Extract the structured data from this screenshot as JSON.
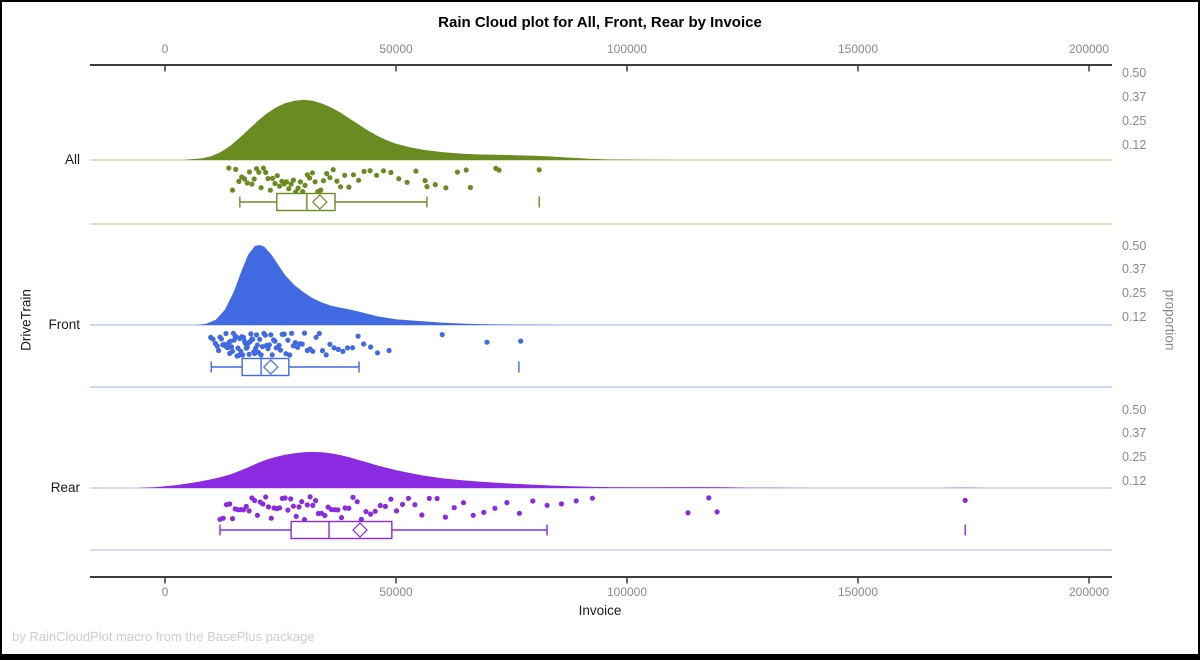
{
  "title": "Rain Cloud plot for All, Front, Rear by Invoice",
  "footnote": "by RainCloudPlot macro from the BasePlus package",
  "x_axis": {
    "label": "Invoice",
    "ticks": [
      "0",
      "50000",
      "100000",
      "150000",
      "200000"
    ],
    "tick_values": [
      0,
      50000,
      100000,
      150000,
      200000
    ]
  },
  "y_axis": {
    "label": "DriveTrain"
  },
  "right_axis": {
    "label": "proportion",
    "ticks": [
      "0.50",
      "0.37",
      "0.25",
      "0.12"
    ],
    "tick_values": [
      0.5,
      0.37,
      0.25,
      0.12
    ]
  },
  "chart_data": {
    "type": "raincloud",
    "xlabel": "Invoice",
    "ylabel": "DriveTrain",
    "x_range": [
      -16000,
      205000
    ],
    "proportion_ticks": [
      0.5,
      0.37,
      0.25,
      0.12
    ],
    "groups": [
      {
        "name": "All",
        "color": "#6a8a22",
        "light_color": "#cfd9ab",
        "density": [
          [
            4000,
            0
          ],
          [
            8000,
            0.01
          ],
          [
            10000,
            0.022
          ],
          [
            12000,
            0.045
          ],
          [
            14000,
            0.08
          ],
          [
            16000,
            0.125
          ],
          [
            18000,
            0.175
          ],
          [
            20000,
            0.225
          ],
          [
            22000,
            0.27
          ],
          [
            24000,
            0.305
          ],
          [
            26000,
            0.33
          ],
          [
            28000,
            0.345
          ],
          [
            30000,
            0.35
          ],
          [
            32000,
            0.344
          ],
          [
            34000,
            0.328
          ],
          [
            36000,
            0.305
          ],
          [
            38000,
            0.275
          ],
          [
            40000,
            0.24
          ],
          [
            42000,
            0.205
          ],
          [
            44000,
            0.17
          ],
          [
            46000,
            0.14
          ],
          [
            48000,
            0.115
          ],
          [
            50000,
            0.095
          ],
          [
            53000,
            0.074
          ],
          [
            56000,
            0.059
          ],
          [
            60000,
            0.046
          ],
          [
            64000,
            0.037
          ],
          [
            68000,
            0.032
          ],
          [
            72000,
            0.03
          ],
          [
            76000,
            0.028
          ],
          [
            80000,
            0.025
          ],
          [
            84000,
            0.02
          ],
          [
            88000,
            0.013
          ],
          [
            92000,
            0.007
          ],
          [
            96000,
            0.003
          ],
          [
            102000,
            0.001
          ],
          [
            110000,
            0
          ]
        ],
        "box": {
          "whisker_low": 16200,
          "q1": 24200,
          "median": 30700,
          "mean": 33500,
          "q3": 36800,
          "whisker_high": 56700,
          "outliers": [
            81000
          ]
        },
        "points": [
          13800,
          14600,
          15300,
          16000,
          16600,
          17200,
          17800,
          18300,
          18800,
          19300,
          19800,
          20300,
          20800,
          21300,
          21800,
          22300,
          22800,
          23300,
          23800,
          24300,
          24800,
          25300,
          25800,
          26300,
          26800,
          27300,
          27800,
          28300,
          28800,
          29300,
          29800,
          30300,
          30800,
          31300,
          31900,
          32500,
          33100,
          33700,
          34300,
          35000,
          35700,
          36400,
          37200,
          38000,
          38900,
          39800,
          40800,
          41900,
          43100,
          44400,
          45800,
          47300,
          48900,
          50600,
          52400,
          54300,
          56300,
          56700,
          58500,
          60800,
          63300,
          65200,
          66100,
          71600,
          72300,
          81000
        ]
      },
      {
        "name": "Front",
        "color": "#4169e1",
        "light_color": "#bdcaf2",
        "density": [
          [
            7000,
            0
          ],
          [
            9000,
            0.008
          ],
          [
            11000,
            0.03
          ],
          [
            13000,
            0.09
          ],
          [
            15000,
            0.2
          ],
          [
            16500,
            0.31
          ],
          [
            18000,
            0.41
          ],
          [
            19500,
            0.46
          ],
          [
            20500,
            0.465
          ],
          [
            21500,
            0.455
          ],
          [
            23000,
            0.41
          ],
          [
            24500,
            0.35
          ],
          [
            26000,
            0.29
          ],
          [
            28000,
            0.232
          ],
          [
            30000,
            0.19
          ],
          [
            32000,
            0.155
          ],
          [
            34000,
            0.13
          ],
          [
            36000,
            0.112
          ],
          [
            38000,
            0.1
          ],
          [
            40000,
            0.09
          ],
          [
            42000,
            0.078
          ],
          [
            44000,
            0.064
          ],
          [
            46000,
            0.051
          ],
          [
            48000,
            0.041
          ],
          [
            50000,
            0.034
          ],
          [
            53000,
            0.027
          ],
          [
            56000,
            0.021
          ],
          [
            60000,
            0.014
          ],
          [
            64000,
            0.009
          ],
          [
            68000,
            0.005
          ],
          [
            72000,
            0.003
          ],
          [
            76000,
            0.002
          ],
          [
            81000,
            0.001
          ],
          [
            86000,
            0
          ]
        ],
        "box": {
          "whisker_low": 10000,
          "q1": 16700,
          "median": 20800,
          "mean": 22900,
          "q3": 26800,
          "whisker_high": 42000,
          "outliers": [
            76600
          ]
        },
        "points": [
          9900,
          10400,
          10900,
          11300,
          11600,
          11900,
          12200,
          12500,
          12800,
          13000,
          13200,
          13400,
          13600,
          13800,
          14000,
          14200,
          14400,
          14600,
          14800,
          15000,
          15200,
          15400,
          15600,
          15800,
          16000,
          16200,
          16400,
          16600,
          16800,
          17000,
          17200,
          17400,
          17600,
          17800,
          18000,
          18200,
          18400,
          18600,
          18800,
          19000,
          19200,
          19400,
          19600,
          19800,
          20000,
          20200,
          20500,
          20800,
          21100,
          21400,
          21700,
          22000,
          22300,
          22600,
          22900,
          23200,
          23500,
          23800,
          24100,
          24400,
          24700,
          25000,
          25400,
          25800,
          26200,
          26600,
          27000,
          27400,
          27800,
          28200,
          28700,
          29200,
          29700,
          30200,
          30800,
          31400,
          32000,
          32700,
          33400,
          34100,
          34900,
          35700,
          36600,
          37500,
          38500,
          39500,
          40600,
          41800,
          43000,
          44500,
          46000,
          48500,
          60000,
          69700,
          77000
        ]
      },
      {
        "name": "Rear",
        "color": "#8a2be2",
        "light_color": "#dcc7f4",
        "density": [
          [
            -6000,
            0
          ],
          [
            -2000,
            0.005
          ],
          [
            2000,
            0.015
          ],
          [
            6000,
            0.03
          ],
          [
            9000,
            0.045
          ],
          [
            12000,
            0.062
          ],
          [
            14000,
            0.078
          ],
          [
            16000,
            0.098
          ],
          [
            18000,
            0.12
          ],
          [
            20000,
            0.145
          ],
          [
            22000,
            0.165
          ],
          [
            24000,
            0.181
          ],
          [
            26000,
            0.193
          ],
          [
            28000,
            0.202
          ],
          [
            30000,
            0.208
          ],
          [
            32000,
            0.21
          ],
          [
            34000,
            0.208
          ],
          [
            36000,
            0.201
          ],
          [
            38000,
            0.191
          ],
          [
            40000,
            0.178
          ],
          [
            42000,
            0.162
          ],
          [
            44000,
            0.147
          ],
          [
            46000,
            0.131
          ],
          [
            48000,
            0.117
          ],
          [
            50000,
            0.104
          ],
          [
            53000,
            0.087
          ],
          [
            56000,
            0.072
          ],
          [
            60000,
            0.057
          ],
          [
            64000,
            0.046
          ],
          [
            68000,
            0.037
          ],
          [
            72000,
            0.03
          ],
          [
            76000,
            0.024
          ],
          [
            80000,
            0.019
          ],
          [
            84000,
            0.014
          ],
          [
            88000,
            0.01
          ],
          [
            92000,
            0.007
          ],
          [
            96000,
            0.005
          ],
          [
            101000,
            0.004
          ],
          [
            106000,
            0.004
          ],
          [
            111000,
            0.005
          ],
          [
            116000,
            0.005
          ],
          [
            121000,
            0.004
          ],
          [
            126000,
            0.002
          ],
          [
            132000,
            0.001
          ],
          [
            140000,
            0
          ],
          [
            168000,
            0
          ],
          [
            171000,
            0.002
          ],
          [
            174000,
            0.002
          ],
          [
            177000,
            0
          ]
        ],
        "box": {
          "whisker_low": 11900,
          "q1": 27300,
          "median": 35500,
          "mean": 42200,
          "q3": 49100,
          "whisker_high": 82700,
          "outliers": [
            173200
          ]
        },
        "points": [
          11900,
          12600,
          13300,
          14000,
          14600,
          15200,
          15800,
          16400,
          17000,
          17600,
          18200,
          18800,
          19400,
          20000,
          20600,
          21200,
          21800,
          22400,
          23000,
          23600,
          24200,
          24800,
          25400,
          26000,
          26600,
          27200,
          27800,
          28400,
          29000,
          29600,
          30200,
          30800,
          31400,
          32000,
          32600,
          33200,
          33900,
          34600,
          35300,
          36000,
          36700,
          37400,
          38200,
          39000,
          39800,
          40700,
          41600,
          42500,
          43500,
          44500,
          45500,
          46600,
          47700,
          48900,
          50100,
          51400,
          52700,
          54100,
          55600,
          57200,
          58900,
          60700,
          62600,
          64600,
          66700,
          69000,
          71400,
          74000,
          76700,
          79600,
          82700,
          85800,
          89000,
          92500,
          113200,
          117700,
          119500,
          173200
        ]
      }
    ]
  }
}
